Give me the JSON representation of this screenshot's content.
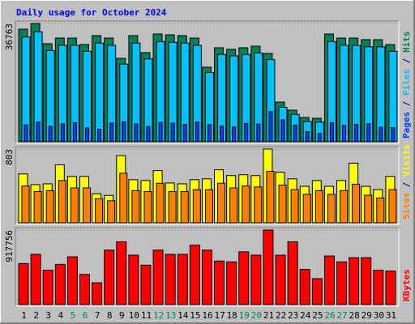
{
  "chart_data": {
    "type": "bar",
    "title": "Daily usage for October 2024",
    "title_color": "#0000ff",
    "categories": [
      "1",
      "2",
      "3",
      "4",
      "5",
      "6",
      "7",
      "8",
      "9",
      "10",
      "11",
      "12",
      "13",
      "14",
      "15",
      "16",
      "17",
      "18",
      "19",
      "20",
      "21",
      "22",
      "23",
      "24",
      "25",
      "26",
      "27",
      "28",
      "29",
      "30",
      "31"
    ],
    "category_colors": [
      "#000000",
      "#000000",
      "#000000",
      "#000000",
      "#00805c",
      "#00805c",
      "#000000",
      "#000000",
      "#000000",
      "#000000",
      "#000000",
      "#00805c",
      "#00805c",
      "#000000",
      "#000000",
      "#000000",
      "#000000",
      "#000000",
      "#00805c",
      "#00805c",
      "#000000",
      "#000000",
      "#000000",
      "#000000",
      "#000000",
      "#00805c",
      "#00805c",
      "#000000",
      "#000000",
      "#000000",
      "#000000"
    ],
    "legend_separator": " / ",
    "panels": [
      {
        "ylim": [
          0,
          36763
        ],
        "yticks": [
          36763
        ],
        "series": [
          {
            "name": "Hits",
            "color": "#00805c",
            "values": [
              35000,
              36763,
              30470,
              32230,
              32230,
              30220,
              32990,
              32230,
              25940,
              32990,
              27700,
              33490,
              33240,
              32990,
              32230,
              23170,
              29210,
              28710,
              29210,
              29710,
              27450,
              12340,
              9820,
              7550,
              7300,
              33490,
              32230,
              32230,
              31730,
              31730,
              30220
            ]
          },
          {
            "name": "Files",
            "color": "#00c0ff",
            "values": [
              32550,
              34190,
              28340,
              29970,
              29970,
              28100,
              30680,
              29970,
              24120,
              30680,
              25760,
              31150,
              30910,
              30680,
              29970,
              21550,
              27170,
              26700,
              27170,
              27630,
              25530,
              10700,
              8500,
              6300,
              6100,
              31150,
              29970,
              29970,
              29510,
              29510,
              28100
            ]
          },
          {
            "name": "Pages",
            "color": "#0040ff",
            "values": [
              5200,
              6100,
              4800,
              5600,
              5900,
              4300,
              3900,
              5800,
              6200,
              5500,
              4700,
              6000,
              5800,
              5400,
              6100,
              5300,
              4900,
              4600,
              5700,
              5500,
              9400,
              6800,
              5200,
              3100,
              2600,
              5900,
              5100,
              5400,
              5600,
              4500,
              4400
            ]
          }
        ]
      },
      {
        "ylim": [
          0,
          803
        ],
        "yticks": [
          803
        ],
        "series": [
          {
            "name": "Visits",
            "color": "#ffff00",
            "values": [
              532,
              415,
              424,
              631,
              505,
              505,
              316,
              298,
              731,
              469,
              460,
              568,
              433,
              424,
              469,
              478,
              577,
              514,
              523,
              514,
              803,
              550,
              478,
              397,
              460,
              397,
              460,
              649,
              397,
              361,
              505
            ]
          },
          {
            "name": "Sites",
            "color": "#ff8000",
            "values": [
              400,
              340,
              350,
              460,
              380,
              380,
              260,
              240,
              540,
              350,
              340,
              430,
              340,
              340,
              360,
              360,
              430,
              380,
              400,
              390,
              560,
              410,
              360,
              310,
              350,
              310,
              350,
              420,
              300,
              270,
              360
            ]
          }
        ]
      },
      {
        "ylim": [
          0,
          917756
        ],
        "yticks": [
          917756
        ],
        "series": [
          {
            "name": "KBytes",
            "color": "#ff0000",
            "values": [
              505300,
              618700,
              422800,
              495000,
              587800,
              371200,
              268100,
              670300,
              773400,
              608400,
              484700,
              670300,
              618700,
              618700,
              732200,
              670300,
              536200,
              525900,
              649700,
              608400,
              917756,
              608400,
              773400,
              433100,
              319700,
              598100,
              525900,
              577500,
              577500,
              422800,
              412500
            ]
          }
        ]
      }
    ]
  }
}
